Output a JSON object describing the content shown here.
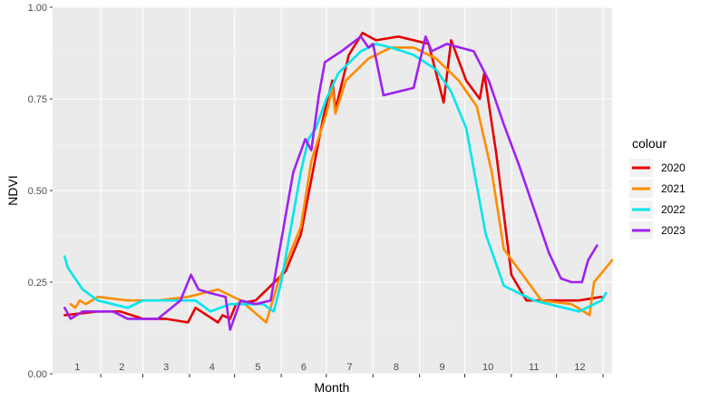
{
  "chart_data": {
    "type": "line",
    "xlabel": "Month",
    "ylabel": "NDVI",
    "xlim": [
      1,
      365
    ],
    "ylim": [
      0,
      1
    ],
    "y_ticks": [
      {
        "value": 0,
        "label": "0.00"
      },
      {
        "value": 0.25,
        "label": "0.25"
      },
      {
        "value": 0.5,
        "label": "0.50"
      },
      {
        "value": 0.75,
        "label": "0.75"
      },
      {
        "value": 1,
        "label": "1.00"
      }
    ],
    "month_labels": [
      "1",
      "2",
      "3",
      "4",
      "5",
      "6",
      "7",
      "8",
      "9",
      "10",
      "11",
      "12"
    ],
    "grid": true,
    "legend": {
      "title": "colour",
      "position": "right"
    },
    "series": [
      {
        "name": "2020",
        "color": "#e60000",
        "points": [
          [
            8,
            0.16
          ],
          [
            30,
            0.17
          ],
          [
            45,
            0.17
          ],
          [
            60,
            0.15
          ],
          [
            75,
            0.15
          ],
          [
            90,
            0.14
          ],
          [
            95,
            0.18
          ],
          [
            110,
            0.14
          ],
          [
            113,
            0.16
          ],
          [
            118,
            0.15
          ],
          [
            122,
            0.19
          ],
          [
            135,
            0.2
          ],
          [
            155,
            0.28
          ],
          [
            165,
            0.38
          ],
          [
            172,
            0.53
          ],
          [
            180,
            0.7
          ],
          [
            186,
            0.8
          ],
          [
            188,
            0.72
          ],
          [
            197,
            0.87
          ],
          [
            206,
            0.93
          ],
          [
            215,
            0.91
          ],
          [
            230,
            0.92
          ],
          [
            250,
            0.9
          ],
          [
            260,
            0.74
          ],
          [
            265,
            0.91
          ],
          [
            275,
            0.8
          ],
          [
            284,
            0.75
          ],
          [
            287,
            0.82
          ],
          [
            295,
            0.6
          ],
          [
            305,
            0.27
          ],
          [
            315,
            0.2
          ],
          [
            330,
            0.2
          ],
          [
            350,
            0.2
          ],
          [
            365,
            0.21
          ]
        ]
      },
      {
        "name": "2021",
        "color": "#ff8c00",
        "points": [
          [
            12,
            0.19
          ],
          [
            15,
            0.18
          ],
          [
            18,
            0.2
          ],
          [
            22,
            0.19
          ],
          [
            30,
            0.21
          ],
          [
            50,
            0.2
          ],
          [
            70,
            0.2
          ],
          [
            90,
            0.21
          ],
          [
            110,
            0.23
          ],
          [
            125,
            0.2
          ],
          [
            142,
            0.14
          ],
          [
            150,
            0.25
          ],
          [
            165,
            0.4
          ],
          [
            172,
            0.58
          ],
          [
            182,
            0.71
          ],
          [
            186,
            0.78
          ],
          [
            188,
            0.71
          ],
          [
            195,
            0.8
          ],
          [
            210,
            0.86
          ],
          [
            225,
            0.89
          ],
          [
            240,
            0.89
          ],
          [
            255,
            0.86
          ],
          [
            270,
            0.8
          ],
          [
            282,
            0.73
          ],
          [
            292,
            0.55
          ],
          [
            300,
            0.34
          ],
          [
            325,
            0.2
          ],
          [
            345,
            0.19
          ],
          [
            357,
            0.16
          ],
          [
            360,
            0.25
          ],
          [
            372,
            0.31
          ]
        ]
      },
      {
        "name": "2022",
        "color": "#00e5ee",
        "points": [
          [
            8,
            0.32
          ],
          [
            10,
            0.29
          ],
          [
            15,
            0.26
          ],
          [
            20,
            0.23
          ],
          [
            30,
            0.2
          ],
          [
            50,
            0.18
          ],
          [
            60,
            0.2
          ],
          [
            80,
            0.2
          ],
          [
            95,
            0.2
          ],
          [
            105,
            0.17
          ],
          [
            118,
            0.19
          ],
          [
            140,
            0.19
          ],
          [
            147,
            0.17
          ],
          [
            152,
            0.25
          ],
          [
            165,
            0.55
          ],
          [
            170,
            0.64
          ],
          [
            175,
            0.67
          ],
          [
            182,
            0.75
          ],
          [
            190,
            0.82
          ],
          [
            205,
            0.88
          ],
          [
            215,
            0.9
          ],
          [
            225,
            0.89
          ],
          [
            240,
            0.87
          ],
          [
            255,
            0.83
          ],
          [
            265,
            0.77
          ],
          [
            275,
            0.67
          ],
          [
            288,
            0.38
          ],
          [
            300,
            0.24
          ],
          [
            320,
            0.2
          ],
          [
            340,
            0.18
          ],
          [
            350,
            0.17
          ],
          [
            365,
            0.2
          ],
          [
            368,
            0.22
          ]
        ]
      },
      {
        "name": "2023",
        "color": "#a020f0",
        "points": [
          [
            8,
            0.18
          ],
          [
            12,
            0.15
          ],
          [
            20,
            0.17
          ],
          [
            40,
            0.17
          ],
          [
            50,
            0.15
          ],
          [
            70,
            0.15
          ],
          [
            85,
            0.2
          ],
          [
            92,
            0.27
          ],
          [
            97,
            0.23
          ],
          [
            105,
            0.22
          ],
          [
            115,
            0.21
          ],
          [
            118,
            0.12
          ],
          [
            125,
            0.2
          ],
          [
            135,
            0.19
          ],
          [
            145,
            0.2
          ],
          [
            160,
            0.55
          ],
          [
            168,
            0.64
          ],
          [
            172,
            0.61
          ],
          [
            177,
            0.76
          ],
          [
            181,
            0.85
          ],
          [
            192,
            0.88
          ],
          [
            205,
            0.92
          ],
          [
            210,
            0.89
          ],
          [
            213,
            0.9
          ],
          [
            220,
            0.76
          ],
          [
            240,
            0.78
          ],
          [
            248,
            0.92
          ],
          [
            252,
            0.88
          ],
          [
            262,
            0.9
          ],
          [
            280,
            0.88
          ],
          [
            290,
            0.8
          ],
          [
            300,
            0.68
          ],
          [
            310,
            0.57
          ],
          [
            320,
            0.45
          ],
          [
            330,
            0.33
          ],
          [
            338,
            0.26
          ],
          [
            345,
            0.25
          ],
          [
            352,
            0.25
          ],
          [
            356,
            0.31
          ],
          [
            362,
            0.35
          ]
        ]
      }
    ]
  }
}
